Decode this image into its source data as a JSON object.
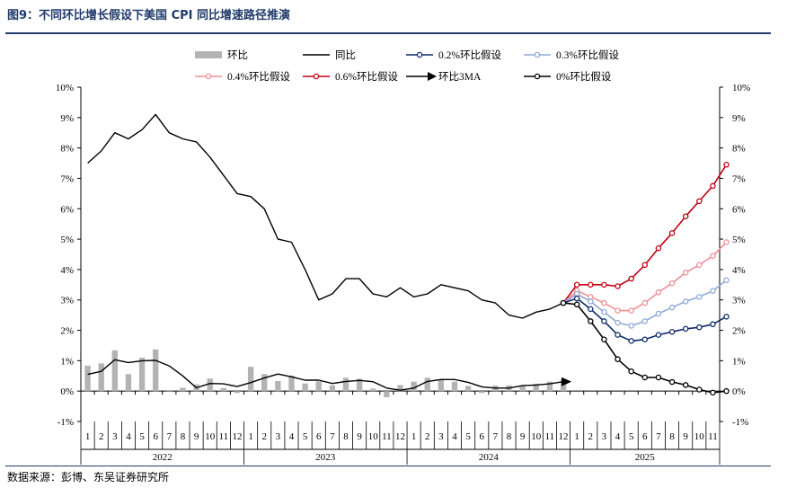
{
  "title": "图9：不同环比增长假设下美国 CPI 同比增速路径推演",
  "source": "数据来源：彭博、东吴证券研究所",
  "chart_data": {
    "type": "line",
    "y_ticks": [
      "-1%",
      "0%",
      "1%",
      "2%",
      "3%",
      "4%",
      "5%",
      "6%",
      "7%",
      "8%",
      "9%",
      "10%"
    ],
    "ylim": [
      -1,
      10
    ],
    "month_labels": [
      "1",
      "2",
      "3",
      "4",
      "5",
      "6",
      "7",
      "8",
      "9",
      "10",
      "11",
      "12",
      "1",
      "2",
      "3",
      "4",
      "5",
      "6",
      "7",
      "8",
      "9",
      "10",
      "11",
      "12",
      "1",
      "2",
      "3",
      "4",
      "5",
      "6",
      "7",
      "8",
      "9",
      "10",
      "11",
      "12",
      "1",
      "2",
      "3",
      "4",
      "5",
      "6",
      "7",
      "8",
      "9",
      "10",
      "11"
    ],
    "year_labels": [
      "2022",
      "2023",
      "2024",
      "2025"
    ],
    "legend": [
      "环比",
      "同比",
      "0.2%环比假设",
      "0.3%环比假设",
      "0.4%环比假设",
      "0.6%环比假设",
      "环比3MA",
      "0%环比假设"
    ],
    "colors": {
      "mom_bar": "#b3b3b3",
      "yoy": "#000000",
      "s02": "#0f2b6b",
      "s03": "#8fa9d8",
      "s04": "#f08f94",
      "s06": "#c00012",
      "ma3": "#000000",
      "s00": "#000000"
    },
    "mom": [
      0.84,
      0.91,
      1.34,
      0.56,
      1.1,
      1.37,
      0.01,
      0.11,
      0.22,
      0.41,
      0.1,
      -0.06,
      0.8,
      0.56,
      0.33,
      0.51,
      0.25,
      0.32,
      0.19,
      0.44,
      0.41,
      0.08,
      -0.2,
      0.2,
      0.31,
      0.44,
      0.38,
      0.31,
      0.17,
      -0.06,
      0.18,
      0.19,
      0.18,
      0.24,
      0.31,
      0.39
    ],
    "yoy": [
      7.5,
      7.9,
      8.5,
      8.3,
      8.6,
      9.1,
      8.5,
      8.3,
      8.2,
      7.7,
      7.1,
      6.5,
      6.4,
      6.0,
      5.0,
      4.9,
      4.0,
      3.0,
      3.2,
      3.7,
      3.7,
      3.2,
      3.1,
      3.4,
      3.1,
      3.2,
      3.5,
      3.4,
      3.3,
      3.0,
      2.9,
      2.5,
      2.4,
      2.6,
      2.7,
      2.9
    ],
    "ma3": [
      0.55,
      0.65,
      1.03,
      0.94,
      1.0,
      1.01,
      0.83,
      0.5,
      0.11,
      0.25,
      0.24,
      0.15,
      0.28,
      0.43,
      0.56,
      0.47,
      0.36,
      0.36,
      0.25,
      0.32,
      0.35,
      0.31,
      0.1,
      0.03,
      0.1,
      0.32,
      0.38,
      0.38,
      0.29,
      0.14,
      0.1,
      0.1,
      0.18,
      0.2,
      0.24,
      0.31
    ],
    "scenarios": [
      {
        "key": "s06",
        "name": "0.6%环比假设",
        "start": 35,
        "values": [
          2.9,
          3.5,
          3.5,
          3.5,
          3.45,
          3.7,
          4.15,
          4.7,
          5.2,
          5.75,
          6.25,
          6.75,
          7.45
        ]
      },
      {
        "key": "s04",
        "name": "0.4%环比假设",
        "start": 35,
        "values": [
          2.9,
          3.3,
          3.1,
          2.9,
          2.65,
          2.65,
          2.9,
          3.25,
          3.55,
          3.9,
          4.15,
          4.45,
          4.9
        ]
      },
      {
        "key": "s03",
        "name": "0.3%环比假设",
        "start": 35,
        "values": [
          2.9,
          3.2,
          2.95,
          2.6,
          2.25,
          2.15,
          2.3,
          2.55,
          2.75,
          2.95,
          3.1,
          3.3,
          3.65
        ]
      },
      {
        "key": "s02",
        "name": "0.2%环比假设",
        "start": 35,
        "values": [
          2.9,
          3.05,
          2.7,
          2.3,
          1.85,
          1.65,
          1.7,
          1.85,
          1.95,
          2.05,
          2.1,
          2.2,
          2.45
        ]
      },
      {
        "key": "s00",
        "name": "0%环比假设",
        "start": 35,
        "values": [
          2.9,
          2.85,
          2.3,
          1.7,
          1.05,
          0.65,
          0.45,
          0.45,
          0.3,
          0.2,
          0.05,
          -0.05,
          0.0
        ]
      }
    ]
  }
}
